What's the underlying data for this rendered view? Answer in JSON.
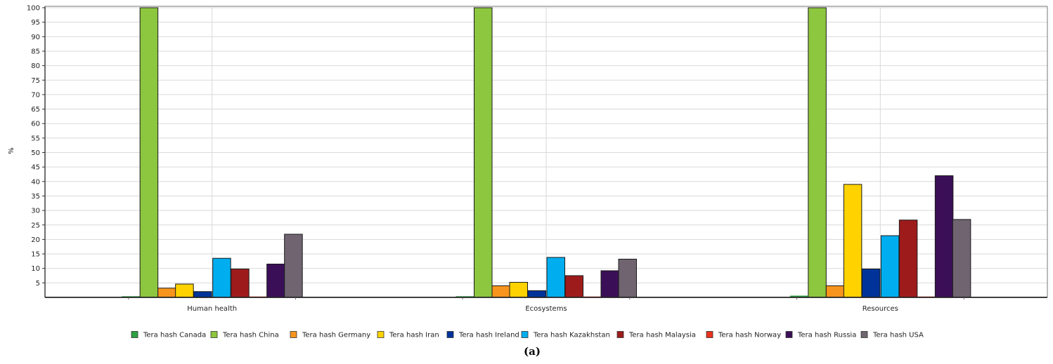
{
  "chart_data": {
    "type": "bar",
    "ylabel": "%",
    "ylim": [
      0,
      100
    ],
    "yticks": [
      5,
      10,
      15,
      20,
      25,
      30,
      35,
      40,
      45,
      50,
      55,
      60,
      65,
      70,
      75,
      80,
      85,
      90,
      95,
      100
    ],
    "grid": true,
    "legend_position": "bottom",
    "caption": "(a)",
    "categories": [
      "Human health",
      "Ecosystems",
      "Resources"
    ],
    "series": [
      {
        "name": "Tera hash Canada",
        "color": "#2ea043",
        "values": [
          0.4,
          0.4,
          0.6
        ]
      },
      {
        "name": "Tera hash China",
        "color": "#8dc63f",
        "values": [
          100,
          100,
          100
        ]
      },
      {
        "name": "Tera hash Germany",
        "color": "#f7941d",
        "values": [
          3.2,
          4.0,
          4.0
        ]
      },
      {
        "name": "Tera hash Iran",
        "color": "#ffd200",
        "values": [
          4.6,
          5.2,
          39
        ]
      },
      {
        "name": "Tera hash Ireland",
        "color": "#003399",
        "values": [
          2.0,
          2.3,
          9.8
        ]
      },
      {
        "name": "Tera hash Kazakhstan",
        "color": "#00aeef",
        "values": [
          13.5,
          13.8,
          21.3
        ]
      },
      {
        "name": "Tera hash Malaysia",
        "color": "#9e1b1b",
        "values": [
          9.8,
          7.5,
          26.7
        ]
      },
      {
        "name": "Tera hash Norway",
        "color": "#e8321e",
        "values": [
          0.3,
          0.3,
          0.3
        ]
      },
      {
        "name": "Tera hash Russia",
        "color": "#3b0f58",
        "values": [
          11.5,
          9.2,
          42
        ]
      },
      {
        "name": "Tera hash USA",
        "color": "#6f6470",
        "values": [
          21.8,
          13.2,
          26.9
        ]
      }
    ]
  }
}
